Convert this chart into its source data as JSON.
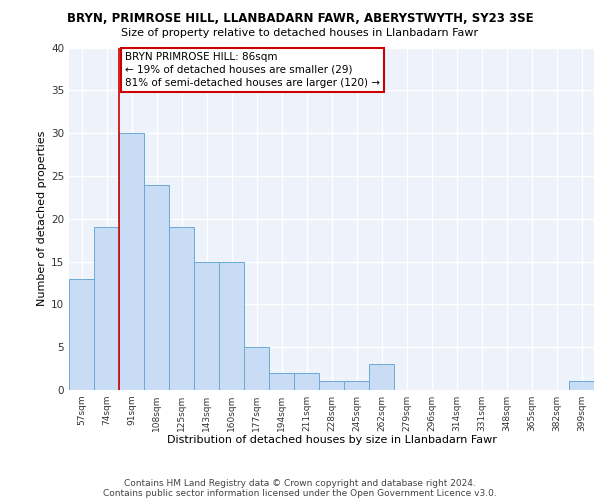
{
  "title1": "BRYN, PRIMROSE HILL, LLANBADARN FAWR, ABERYSTWYTH, SY23 3SE",
  "title2": "Size of property relative to detached houses in Llanbadarn Fawr",
  "xlabel": "Distribution of detached houses by size in Llanbadarn Fawr",
  "ylabel": "Number of detached properties",
  "categories": [
    "57sqm",
    "74sqm",
    "91sqm",
    "108sqm",
    "125sqm",
    "143sqm",
    "160sqm",
    "177sqm",
    "194sqm",
    "211sqm",
    "228sqm",
    "245sqm",
    "262sqm",
    "279sqm",
    "296sqm",
    "314sqm",
    "331sqm",
    "348sqm",
    "365sqm",
    "382sqm",
    "399sqm"
  ],
  "values": [
    13,
    19,
    30,
    24,
    19,
    15,
    15,
    5,
    2,
    2,
    1,
    1,
    3,
    0,
    0,
    0,
    0,
    0,
    0,
    0,
    1
  ],
  "bar_color": "#c8dcf5",
  "bar_edge_color": "#6aaad4",
  "red_line_x": 1.5,
  "annotation_lines": [
    "BRYN PRIMROSE HILL: 86sqm",
    "← 19% of detached houses are smaller (29)",
    "81% of semi-detached houses are larger (120) →"
  ],
  "ylim": [
    0,
    40
  ],
  "yticks": [
    0,
    5,
    10,
    15,
    20,
    25,
    30,
    35,
    40
  ],
  "footer1": "Contains HM Land Registry data © Crown copyright and database right 2024.",
  "footer2": "Contains public sector information licensed under the Open Government Licence v3.0.",
  "bg_color": "#eef2fb",
  "grid_color": "#ffffff",
  "annotation_box_color": "#ffffff",
  "annotation_box_edge": "#cc0000"
}
